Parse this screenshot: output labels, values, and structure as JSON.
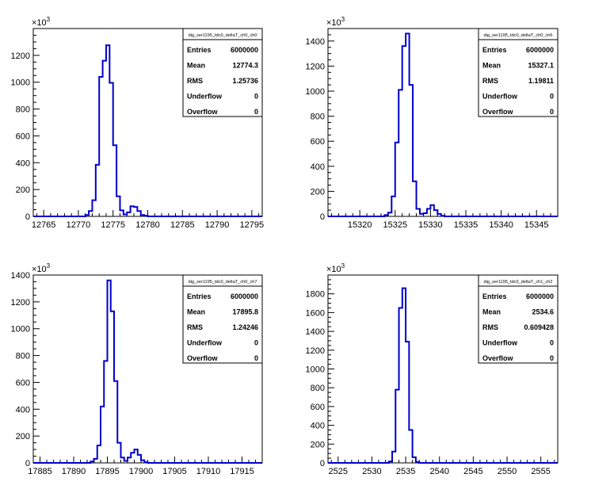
{
  "colors": {
    "line": "#0000cc",
    "axis": "#000000",
    "background": "#ffffff"
  },
  "chart_data": [
    {
      "type": "histogram",
      "stats_title": "dig_ser1195_tdc0_deltaT_ch0_ch0",
      "stats": [
        {
          "label": "Entries",
          "value": "6000000"
        },
        {
          "label": "Mean",
          "value": "12774.3"
        },
        {
          "label": "RMS",
          "value": "1.25736"
        },
        {
          "label": "Underflow",
          "value": "0"
        },
        {
          "label": "Overflow",
          "value": "0"
        }
      ],
      "y_exponent_label": "×10",
      "y_exponent_power": "3",
      "xlim": [
        12763.5,
        12796.5
      ],
      "ylim": [
        0,
        1400
      ],
      "xticks": [
        "12765",
        "12770",
        "12775",
        "12780",
        "12785",
        "12790",
        "12795"
      ],
      "yticks": [
        "0",
        "200",
        "400",
        "600",
        "800",
        "1000",
        "1200"
      ],
      "bin_width": 0.5,
      "bins_x": [
        12770.5,
        12771,
        12771.5,
        12772,
        12772.5,
        12773,
        12773.5,
        12774,
        12774.5,
        12775,
        12775.5,
        12776,
        12776.5,
        12777,
        12777.5,
        12778,
        12778.5,
        12779,
        12779.5,
        12780
      ],
      "bins_y": [
        0,
        10,
        40,
        120,
        385,
        1040,
        1160,
        1275,
        995,
        530,
        150,
        45,
        15,
        30,
        75,
        70,
        40,
        10,
        5,
        0
      ]
    },
    {
      "type": "histogram",
      "stats_title": "dig_ser1195_tdc0_deltaT_ch0_ch6",
      "stats": [
        {
          "label": "Entries",
          "value": "6000000"
        },
        {
          "label": "Mean",
          "value": "15327.1"
        },
        {
          "label": "RMS",
          "value": "1.19811"
        },
        {
          "label": "Underflow",
          "value": "0"
        },
        {
          "label": "Overflow",
          "value": "0"
        }
      ],
      "y_exponent_label": "×10",
      "y_exponent_power": "3",
      "xlim": [
        15315.5,
        15348
      ],
      "ylim": [
        0,
        1500
      ],
      "xticks": [
        "15320",
        "15325",
        "15330",
        "15335",
        "15340",
        "15345"
      ],
      "yticks": [
        "0",
        "200",
        "400",
        "600",
        "800",
        "1000",
        "1200",
        "1400"
      ],
      "bin_width": 0.5,
      "bins_x": [
        15323,
        15323.5,
        15324,
        15324.5,
        15325,
        15325.5,
        15326,
        15326.5,
        15327,
        15327.5,
        15328,
        15328.5,
        15329,
        15329.5,
        15330,
        15330.5,
        15331,
        15331.5,
        15332
      ],
      "bins_y": [
        0,
        10,
        30,
        160,
        590,
        1010,
        1360,
        1460,
        1050,
        280,
        60,
        20,
        25,
        60,
        90,
        50,
        20,
        5,
        0
      ]
    },
    {
      "type": "histogram",
      "stats_title": "dig_ser1195_tdc0_deltaT_ch0_ch7",
      "stats": [
        {
          "label": "Entries",
          "value": "6000000"
        },
        {
          "label": "Mean",
          "value": "17895.8"
        },
        {
          "label": "RMS",
          "value": "1.24246"
        },
        {
          "label": "Underflow",
          "value": "0"
        },
        {
          "label": "Overflow",
          "value": "0"
        }
      ],
      "y_exponent_label": "×10",
      "y_exponent_power": "3",
      "xlim": [
        17884,
        17918
      ],
      "ylim": [
        0,
        1400
      ],
      "xticks": [
        "17885",
        "17890",
        "17895",
        "17900",
        "17905",
        "17910",
        "17915"
      ],
      "yticks": [
        "0",
        "200",
        "400",
        "600",
        "800",
        "1000",
        "1200",
        "1400"
      ],
      "bin_width": 0.5,
      "bins_x": [
        17892,
        17892.5,
        17893,
        17893.5,
        17894,
        17894.5,
        17895,
        17895.5,
        17896,
        17896.5,
        17897,
        17897.5,
        17898,
        17898.5,
        17899,
        17899.5,
        17900,
        17900.5,
        17901
      ],
      "bins_y": [
        0,
        10,
        30,
        130,
        420,
        760,
        1360,
        1130,
        610,
        150,
        40,
        15,
        40,
        75,
        100,
        60,
        20,
        5,
        0
      ]
    },
    {
      "type": "histogram",
      "stats_title": "dig_ser1195_tdc0_deltaT_ch1_ch2",
      "stats": [
        {
          "label": "Entries",
          "value": "6000000"
        },
        {
          "label": "Mean",
          "value": "2534.6"
        },
        {
          "label": "RMS",
          "value": "0.609428"
        },
        {
          "label": "Underflow",
          "value": "0"
        },
        {
          "label": "Overflow",
          "value": "0"
        }
      ],
      "y_exponent_label": "×10",
      "y_exponent_power": "3",
      "xlim": [
        2523.5,
        2557.5
      ],
      "ylim": [
        0,
        2000
      ],
      "xticks": [
        "2525",
        "2530",
        "2535",
        "2540",
        "2545",
        "2550",
        "2555"
      ],
      "yticks": [
        "0",
        "200",
        "400",
        "600",
        "800",
        "1000",
        "1200",
        "1400",
        "1600",
        "1800"
      ],
      "bin_width": 0.5,
      "bins_x": [
        2532,
        2532.5,
        2533,
        2533.5,
        2534,
        2534.5,
        2535,
        2535.5,
        2536,
        2536.5,
        2537
      ],
      "bins_y": [
        0,
        15,
        120,
        780,
        1650,
        1860,
        1290,
        350,
        60,
        10,
        0
      ]
    }
  ]
}
